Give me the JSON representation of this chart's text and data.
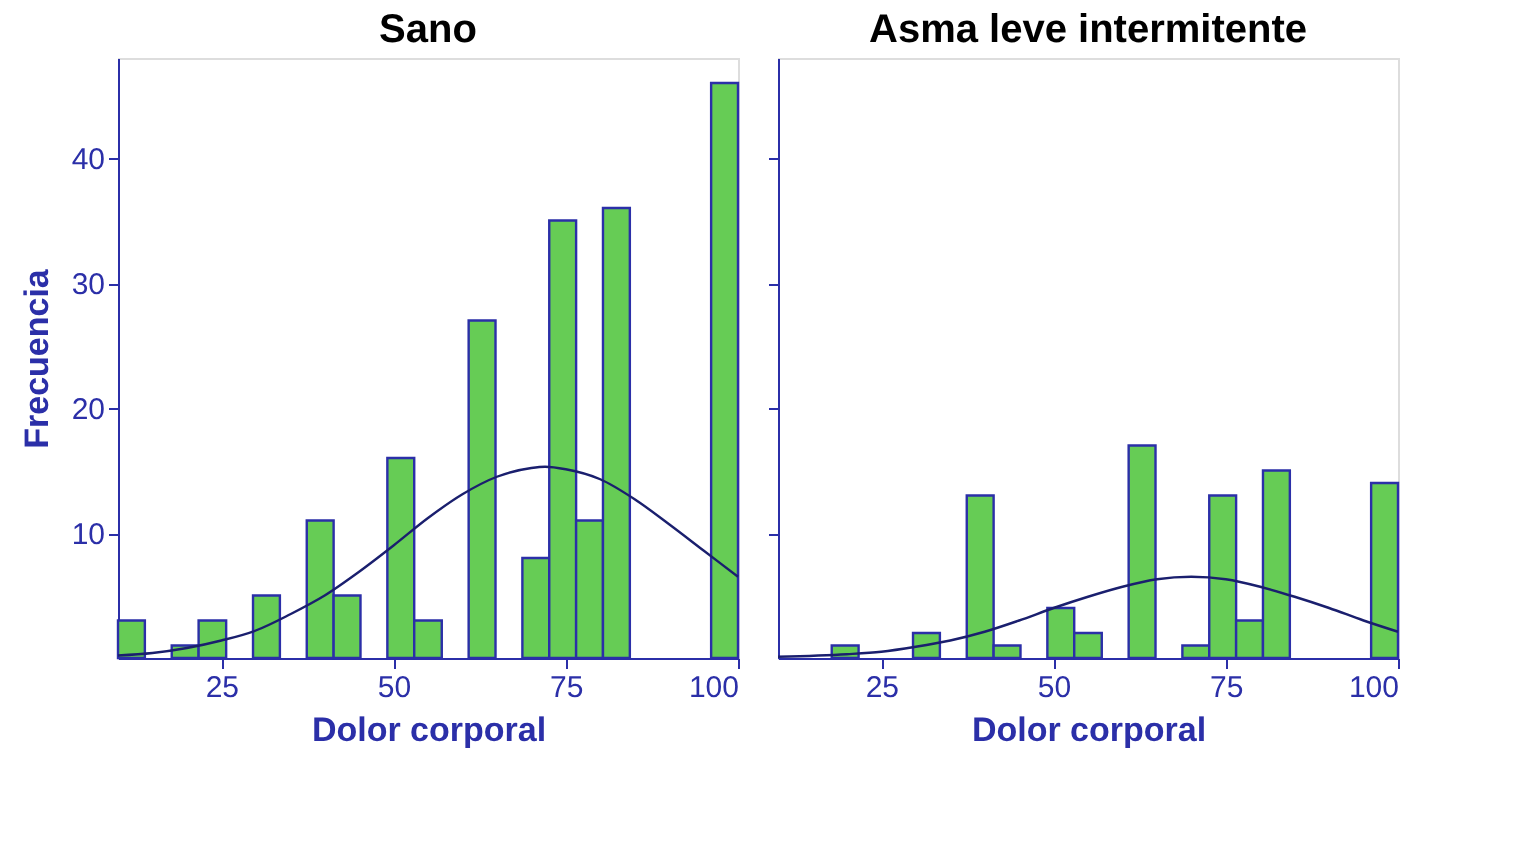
{
  "chart_data": [
    {
      "type": "histogram",
      "title": "Sano",
      "xlabel": "Dolor corporal",
      "ylabel": "Frecuencia",
      "bins": [
        10,
        13.9,
        17.8,
        21.7,
        25.7,
        29.6,
        33.5,
        37.4,
        41.3,
        45.2,
        49.1,
        53.0,
        57.0,
        60.9,
        64.8,
        68.7,
        72.6,
        76.5,
        80.4,
        84.3,
        96.1,
        100
      ],
      "values": [
        3,
        0,
        1,
        3,
        0,
        5,
        0,
        11,
        5,
        0,
        16,
        3,
        0,
        27,
        0,
        8,
        35,
        11,
        36,
        0,
        46
      ],
      "color": "#66cc55",
      "series": [
        {
          "type": "line",
          "color": "#1a1f6e",
          "x": [
            10,
            15,
            20,
            25,
            30,
            35,
            40,
            45,
            50,
            55,
            60,
            65,
            70,
            72,
            75,
            80,
            85,
            90,
            95,
            100
          ],
          "values": [
            0.2,
            0.4,
            0.8,
            1.4,
            2.2,
            3.5,
            5,
            6.9,
            9,
            11.2,
            13.1,
            14.5,
            15.2,
            15.3,
            15.1,
            14.3,
            12.7,
            10.7,
            8.6,
            6.5
          ]
        }
      ],
      "xlim": [
        10,
        100
      ],
      "ylim": [
        0,
        48
      ],
      "xticks": [
        25,
        50,
        75,
        100
      ],
      "yticks": [
        10,
        20,
        30,
        40
      ],
      "grid": false
    },
    {
      "type": "histogram",
      "title": "Asma leve intermitente",
      "xlabel": "Dolor corporal",
      "bins": [
        17.8,
        21.7,
        29.6,
        33.5,
        37.4,
        41.3,
        45.2,
        49.1,
        53.0,
        57.0,
        60.9,
        64.8,
        68.7,
        72.6,
        76.5,
        80.4,
        84.3,
        96.1,
        100
      ],
      "values": [
        1,
        0,
        2,
        0,
        13,
        1,
        0,
        4,
        2,
        0,
        17,
        0,
        1,
        13,
        3,
        15,
        0,
        14
      ],
      "color": "#66cc55",
      "series": [
        {
          "type": "line",
          "color": "#1a1f6e",
          "x": [
            10,
            20,
            25,
            30,
            35,
            40,
            45,
            50,
            55,
            60,
            65,
            70,
            75,
            80,
            85,
            90,
            95,
            100
          ],
          "values": [
            0.1,
            0.3,
            0.5,
            0.9,
            1.4,
            2.1,
            3,
            4,
            4.9,
            5.7,
            6.3,
            6.5,
            6.3,
            5.7,
            4.9,
            4,
            3,
            2.1
          ]
        }
      ],
      "xlim": [
        10,
        100
      ],
      "ylim": [
        0,
        48
      ],
      "xticks": [
        25,
        50,
        75,
        100
      ],
      "yticks": [
        10,
        20,
        30,
        40
      ],
      "tick_labels": "x",
      "grid": false
    }
  ]
}
